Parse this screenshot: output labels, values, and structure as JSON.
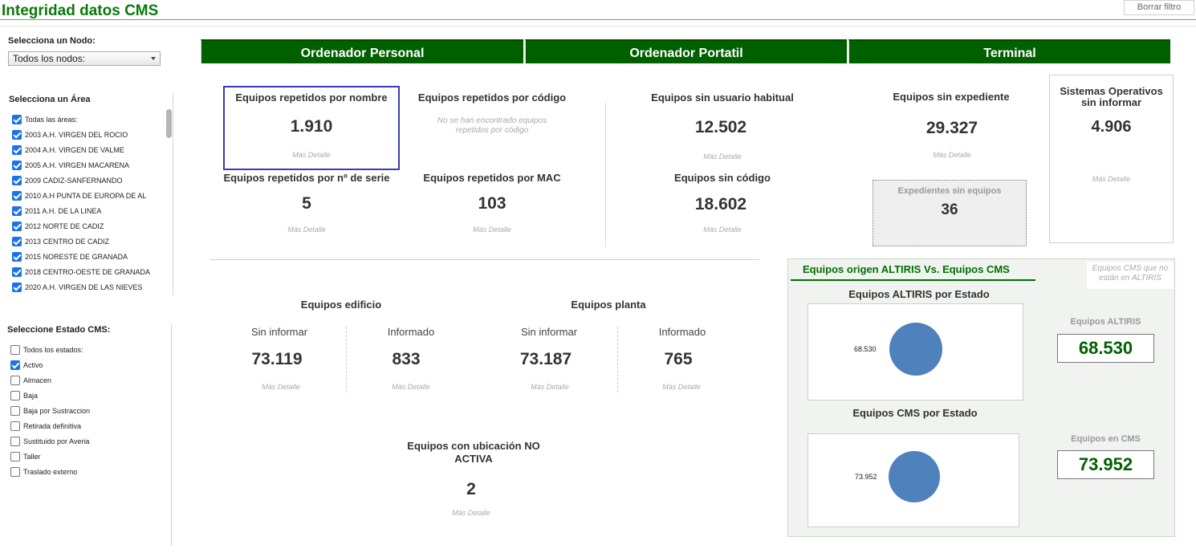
{
  "header": {
    "title": "Integridad datos CMS",
    "clear_filter": "Borrar filtro"
  },
  "filters": {
    "node_label": "Selecciona un Nodo:",
    "node_value": "Todos los nodos:",
    "area_label": "Selecciona un Área",
    "areas": [
      {
        "label": "Todas las áreas:",
        "checked": true
      },
      {
        "label": "2003 A.H. VIRGEN DEL ROCIO",
        "checked": true
      },
      {
        "label": "2004 A.H. VIRGEN DE VALME",
        "checked": true
      },
      {
        "label": "2005 A.H. VIRGEN MACARENA",
        "checked": true
      },
      {
        "label": "2009 CADIZ-SANFERNANDO",
        "checked": true
      },
      {
        "label": "2010 A.H PUNTA DE EUROPA DE AL",
        "checked": true
      },
      {
        "label": "2011 A.H. DE LA LINEA",
        "checked": true
      },
      {
        "label": "2012 NORTE DE CADIZ",
        "checked": true
      },
      {
        "label": "2013 CENTRO DE CADIZ",
        "checked": true
      },
      {
        "label": "2015 NORESTE DE GRANADA",
        "checked": true
      },
      {
        "label": "2018 CENTRO-OESTE DE GRANADA",
        "checked": true
      },
      {
        "label": "2020 A.H. VIRGEN DE LAS NIEVES",
        "checked": true
      }
    ],
    "estado_label": "Seleccione Estado CMS:",
    "estados": [
      {
        "label": "Todos los estados:",
        "checked": false
      },
      {
        "label": "Activo",
        "checked": true
      },
      {
        "label": "Almacen",
        "checked": false
      },
      {
        "label": "Baja",
        "checked": false
      },
      {
        "label": "Baja por Sustraccion",
        "checked": false
      },
      {
        "label": "Retirada definitiva",
        "checked": false
      },
      {
        "label": "Sustituido por Averia",
        "checked": false
      },
      {
        "label": "Taller",
        "checked": false
      },
      {
        "label": "Traslado externo",
        "checked": false
      }
    ]
  },
  "tabs": [
    "Ordenador Personal",
    "Ordenador Portatil",
    "Terminal"
  ],
  "detail_label": "Más Detalle",
  "metrics": {
    "rep_nombre": {
      "title": "Equipos repetidos por nombre",
      "value": "1.910"
    },
    "rep_codigo": {
      "title": "Equipos repetidos por código",
      "note": "No se han encontrado equipos repetidos por código"
    },
    "rep_serie": {
      "title": "Equipos repetidos por nº de serie",
      "value": "5"
    },
    "rep_mac": {
      "title": "Equipos repetidos por MAC",
      "value": "103"
    },
    "sin_usuario": {
      "title": "Equipos sin usuario habitual",
      "value": "12.502"
    },
    "sin_codigo": {
      "title": "Equipos sin código",
      "value": "18.602"
    },
    "sin_expediente": {
      "title": "Equipos sin expediente",
      "value": "29.327"
    },
    "exp_sin_equipos": {
      "title": "Expedientes sin equipos",
      "value": "36"
    },
    "so_sin_informar": {
      "title": "Sistemas Operativos sin informar",
      "value": "4.906"
    }
  },
  "ubicacion": {
    "edificio_title": "Equipos edificio",
    "planta_title": "Equipos planta",
    "sin_informar_label": "Sin informar",
    "informado_label": "Informado",
    "edificio_sin": "73.119",
    "edificio_inf": "833",
    "planta_sin": "73.187",
    "planta_inf": "765",
    "no_activa_title": "Equipos con ubicación NO ACTIVA",
    "no_activa_value": "2"
  },
  "altiris": {
    "title": "Equipos origen ALTIRIS Vs. Equipos CMS",
    "cms_note": "Equipos CMS que no están en ALTIRIS",
    "altiris_chart_title": "Equipos ALTIRIS por Estado",
    "cms_chart_title": "Equipos CMS por Estado",
    "altiris_kpi_label": "Equipos ALTIRIS",
    "altiris_kpi_value": "68.530",
    "cms_kpi_label": "Equipos en CMS",
    "cms_kpi_value": "73.952"
  },
  "chart_data": [
    {
      "type": "pie",
      "title": "Equipos ALTIRIS por Estado",
      "labels": [
        ""
      ],
      "values": [
        68530
      ],
      "data_labels": [
        "68.530"
      ],
      "colors": [
        "#4f81bd"
      ]
    },
    {
      "type": "pie",
      "title": "Equipos CMS por Estado",
      "labels": [
        ""
      ],
      "values": [
        73952
      ],
      "data_labels": [
        "73.952"
      ],
      "colors": [
        "#4f81bd"
      ]
    }
  ]
}
